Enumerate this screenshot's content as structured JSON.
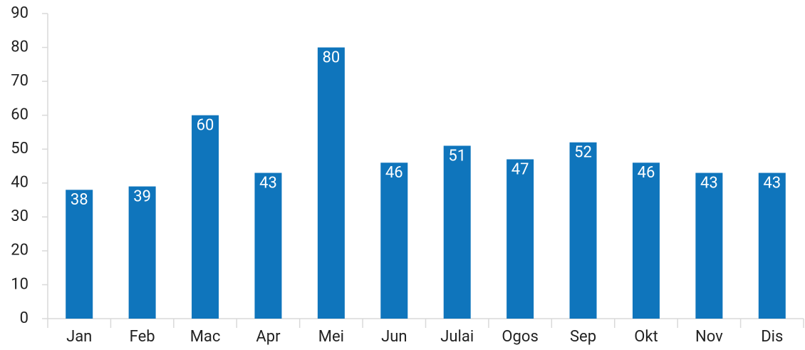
{
  "chart_data": {
    "type": "bar",
    "categories": [
      "Jan",
      "Feb",
      "Mac",
      "Apr",
      "Mei",
      "Jun",
      "Julai",
      "Ogos",
      "Sep",
      "Okt",
      "Nov",
      "Dis"
    ],
    "values": [
      38,
      39,
      60,
      43,
      80,
      46,
      51,
      47,
      52,
      46,
      43,
      43
    ],
    "color": "#0f75bc",
    "ylim": [
      0,
      90
    ],
    "yticks": [
      0,
      10,
      20,
      30,
      40,
      50,
      60,
      70,
      80,
      90
    ],
    "grid": false
  }
}
